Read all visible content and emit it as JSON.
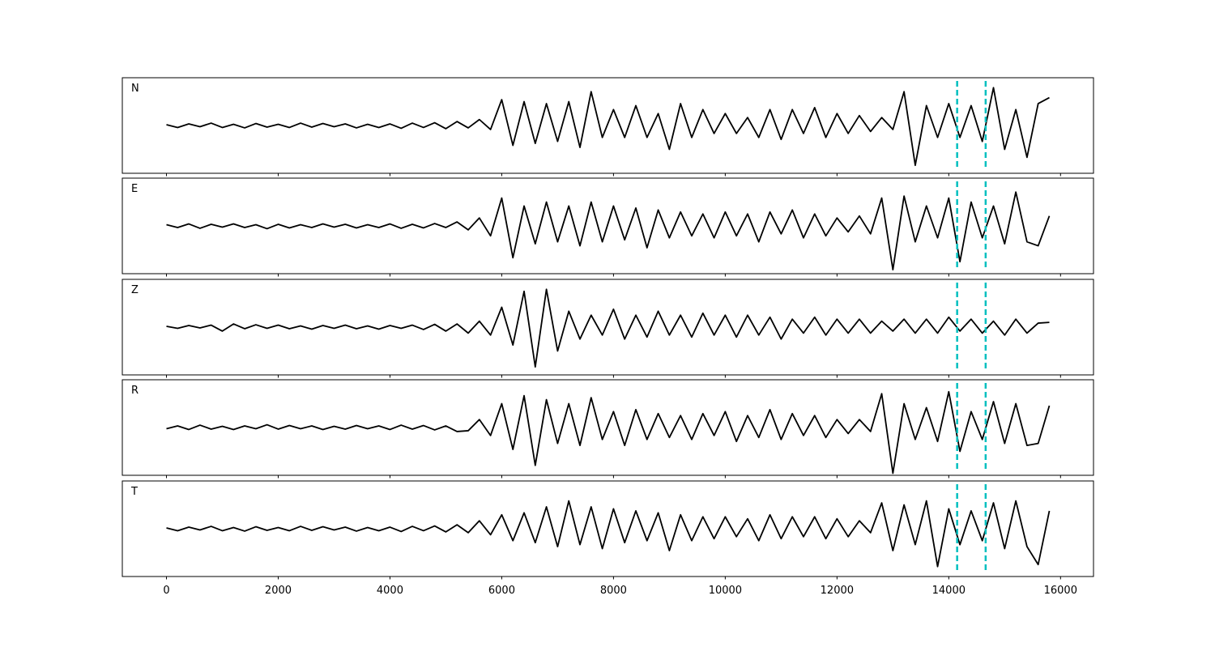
{
  "chart_data": {
    "type": "line",
    "x": [
      0,
      200,
      400,
      600,
      800,
      1000,
      1200,
      1400,
      1600,
      1800,
      2000,
      2200,
      2400,
      2600,
      2800,
      3000,
      3200,
      3400,
      3600,
      3800,
      4000,
      4200,
      4400,
      4600,
      4800,
      5000,
      5200,
      5400,
      5600,
      5800,
      6000,
      6200,
      6400,
      6600,
      6800,
      7000,
      7200,
      7400,
      7600,
      7800,
      8000,
      8200,
      8400,
      8600,
      8800,
      9000,
      9200,
      9400,
      9600,
      9800,
      10000,
      10200,
      10400,
      10600,
      10800,
      11000,
      11200,
      11400,
      11600,
      11800,
      12000,
      12200,
      12400,
      12600,
      12800,
      13000,
      13200,
      13400,
      13600,
      13800,
      14000,
      14200,
      14400,
      14600,
      14800,
      15000,
      15200,
      15400,
      15600,
      15800
    ],
    "xlim": [
      -790,
      16590
    ],
    "xticks": [
      0,
      2000,
      4000,
      6000,
      8000,
      10000,
      12000,
      14000,
      16000
    ],
    "ylim": [
      -1.2,
      1.2
    ],
    "line_color": "#000000",
    "vlines": [
      14150,
      14660
    ],
    "vline_color": "#00bfbf",
    "panels": [
      {
        "name": "N",
        "values": [
          0.02,
          -0.05,
          0.04,
          -0.03,
          0.06,
          -0.05,
          0.03,
          -0.06,
          0.05,
          -0.04,
          0.03,
          -0.05,
          0.06,
          -0.04,
          0.05,
          -0.03,
          0.04,
          -0.06,
          0.03,
          -0.05,
          0.04,
          -0.07,
          0.06,
          -0.05,
          0.07,
          -0.08,
          0.1,
          -0.06,
          0.15,
          -0.1,
          0.65,
          -0.5,
          0.6,
          -0.45,
          0.55,
          -0.4,
          0.6,
          -0.55,
          0.85,
          -0.3,
          0.4,
          -0.3,
          0.5,
          -0.3,
          0.3,
          -0.6,
          0.55,
          -0.3,
          0.4,
          -0.2,
          0.3,
          -0.2,
          0.2,
          -0.3,
          0.4,
          -0.35,
          0.4,
          -0.2,
          0.45,
          -0.3,
          0.3,
          -0.2,
          0.25,
          -0.15,
          0.2,
          -0.1,
          0.85,
          -1.0,
          0.5,
          -0.3,
          0.55,
          -0.3,
          0.5,
          -0.4,
          0.95,
          -0.6,
          0.4,
          -0.8,
          0.55,
          0.7
        ]
      },
      {
        "name": "E",
        "values": [
          0.03,
          -0.04,
          0.05,
          -0.06,
          0.04,
          -0.03,
          0.05,
          -0.04,
          0.03,
          -0.07,
          0.04,
          -0.05,
          0.03,
          -0.04,
          0.05,
          -0.03,
          0.04,
          -0.05,
          0.03,
          -0.04,
          0.05,
          -0.06,
          0.04,
          -0.05,
          0.06,
          -0.04,
          0.1,
          -0.1,
          0.2,
          -0.25,
          0.7,
          -0.8,
          0.5,
          -0.45,
          0.6,
          -0.4,
          0.5,
          -0.5,
          0.6,
          -0.4,
          0.5,
          -0.35,
          0.45,
          -0.55,
          0.4,
          -0.3,
          0.35,
          -0.25,
          0.3,
          -0.3,
          0.35,
          -0.25,
          0.3,
          -0.4,
          0.35,
          -0.2,
          0.4,
          -0.3,
          0.3,
          -0.25,
          0.2,
          -0.15,
          0.25,
          -0.2,
          0.7,
          -1.1,
          0.75,
          -0.4,
          0.5,
          -0.3,
          0.7,
          -0.9,
          0.6,
          -0.3,
          0.5,
          -0.45,
          0.85,
          -0.4,
          -0.5,
          0.25
        ]
      },
      {
        "name": "Z",
        "values": [
          0.02,
          -0.03,
          0.04,
          -0.02,
          0.05,
          -0.1,
          0.08,
          -0.04,
          0.06,
          -0.03,
          0.05,
          -0.04,
          0.03,
          -0.05,
          0.04,
          -0.03,
          0.05,
          -0.04,
          0.03,
          -0.05,
          0.04,
          -0.03,
          0.05,
          -0.06,
          0.07,
          -0.1,
          0.08,
          -0.15,
          0.15,
          -0.2,
          0.5,
          -0.45,
          0.9,
          -1.0,
          0.95,
          -0.6,
          0.4,
          -0.3,
          0.3,
          -0.2,
          0.45,
          -0.3,
          0.3,
          -0.25,
          0.4,
          -0.2,
          0.3,
          -0.25,
          0.35,
          -0.2,
          0.3,
          -0.25,
          0.3,
          -0.2,
          0.25,
          -0.3,
          0.2,
          -0.15,
          0.25,
          -0.2,
          0.2,
          -0.15,
          0.2,
          -0.15,
          0.15,
          -0.1,
          0.2,
          -0.15,
          0.2,
          -0.15,
          0.25,
          -0.1,
          0.2,
          -0.15,
          0.15,
          -0.2,
          0.2,
          -0.15,
          0.1,
          0.12
        ]
      },
      {
        "name": "R",
        "values": [
          -0.03,
          0.04,
          -0.05,
          0.06,
          -0.04,
          0.03,
          -0.05,
          0.04,
          -0.03,
          0.07,
          -0.04,
          0.05,
          -0.03,
          0.04,
          -0.05,
          0.03,
          -0.04,
          0.05,
          -0.03,
          0.04,
          -0.05,
          0.06,
          -0.04,
          0.05,
          -0.06,
          0.04,
          -0.1,
          -0.08,
          0.2,
          -0.2,
          0.6,
          -0.55,
          0.8,
          -0.95,
          0.7,
          -0.4,
          0.6,
          -0.45,
          0.75,
          -0.3,
          0.4,
          -0.45,
          0.45,
          -0.3,
          0.35,
          -0.25,
          0.3,
          -0.3,
          0.35,
          -0.2,
          0.4,
          -0.35,
          0.3,
          -0.25,
          0.45,
          -0.3,
          0.35,
          -0.2,
          0.3,
          -0.25,
          0.2,
          -0.15,
          0.2,
          -0.1,
          0.85,
          -1.15,
          0.6,
          -0.3,
          0.5,
          -0.35,
          0.9,
          -0.6,
          0.4,
          -0.3,
          0.65,
          -0.4,
          0.6,
          -0.45,
          -0.4,
          0.55
        ]
      },
      {
        "name": "T",
        "values": [
          0.02,
          -0.05,
          0.04,
          -0.03,
          0.06,
          -0.05,
          0.03,
          -0.06,
          0.05,
          -0.04,
          0.03,
          -0.05,
          0.06,
          -0.04,
          0.05,
          -0.03,
          0.04,
          -0.06,
          0.03,
          -0.05,
          0.04,
          -0.07,
          0.06,
          -0.05,
          0.07,
          -0.08,
          0.1,
          -0.1,
          0.2,
          -0.15,
          0.35,
          -0.3,
          0.4,
          -0.35,
          0.55,
          -0.45,
          0.7,
          -0.4,
          0.55,
          -0.5,
          0.5,
          -0.35,
          0.45,
          -0.3,
          0.4,
          -0.55,
          0.35,
          -0.3,
          0.3,
          -0.25,
          0.3,
          -0.2,
          0.25,
          -0.3,
          0.35,
          -0.25,
          0.3,
          -0.2,
          0.3,
          -0.25,
          0.25,
          -0.2,
          0.2,
          -0.1,
          0.65,
          -0.55,
          0.6,
          -0.4,
          0.7,
          -0.95,
          0.5,
          -0.4,
          0.45,
          -0.3,
          0.65,
          -0.5,
          0.7,
          -0.45,
          -0.9,
          0.45
        ]
      }
    ]
  }
}
